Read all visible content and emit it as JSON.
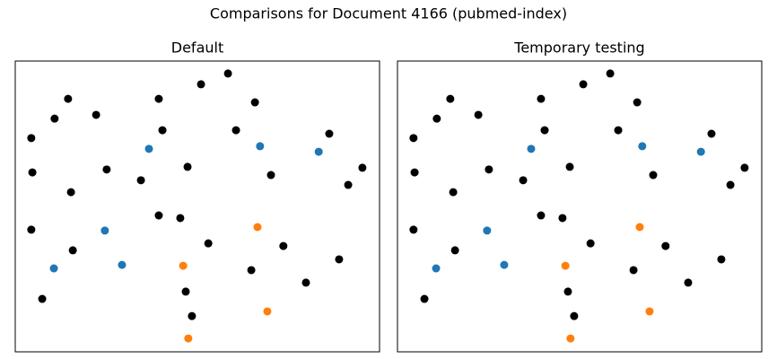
{
  "title": "Comparisons for Document 4166 (pubmed-index)",
  "chart_data": [
    {
      "type": "scatter",
      "title": "Default",
      "xlim": [
        0,
        100
      ],
      "ylim": [
        0,
        100
      ],
      "series": [
        {
          "color": "#000000",
          "x": [
            14.5,
            10.8,
            4.4,
            4.7,
            15.3,
            22.2,
            25.1,
            39.4,
            40.4,
            51.0,
            58.4,
            65.8,
            60.6,
            47.3,
            34.5,
            70.2,
            86.2,
            95.3,
            91.4,
            39.4,
            45.3,
            53.0,
            73.6,
            88.9,
            79.8,
            64.8,
            46.8,
            48.5,
            7.4,
            15.8,
            4.4
          ],
          "y": [
            87.0,
            80.2,
            73.5,
            61.7,
            54.9,
            81.5,
            62.7,
            87.0,
            76.2,
            92.0,
            95.7,
            85.8,
            76.2,
            63.6,
            59.0,
            60.8,
            75.0,
            63.3,
            57.4,
            46.9,
            46.0,
            37.3,
            36.4,
            31.8,
            23.8,
            28.1,
            20.7,
            12.3,
            18.2,
            34.9,
            42.0
          ]
        },
        {
          "color": "#1f77b4",
          "x": [
            36.7,
            67.2,
            83.3,
            24.6,
            10.6,
            29.3
          ],
          "y": [
            69.8,
            70.7,
            68.8,
            41.7,
            28.7,
            29.9
          ]
        },
        {
          "color": "#ff7f0e",
          "x": [
            66.5,
            46.1,
            69.2,
            47.5
          ],
          "y": [
            42.9,
            29.6,
            13.9,
            4.6
          ]
        }
      ]
    },
    {
      "type": "scatter",
      "title": "Temporary testing",
      "xlim": [
        0,
        100
      ],
      "ylim": [
        0,
        100
      ],
      "series": [
        {
          "color": "#000000",
          "x": [
            14.5,
            10.8,
            4.4,
            4.7,
            15.3,
            22.2,
            25.1,
            39.4,
            40.4,
            51.0,
            58.4,
            65.8,
            60.6,
            47.3,
            34.5,
            70.2,
            86.2,
            95.3,
            91.4,
            39.4,
            45.3,
            53.0,
            73.6,
            88.9,
            79.8,
            64.8,
            46.8,
            48.5,
            7.4,
            15.8,
            4.4
          ],
          "y": [
            87.0,
            80.2,
            73.5,
            61.7,
            54.9,
            81.5,
            62.7,
            87.0,
            76.2,
            92.0,
            95.7,
            85.8,
            76.2,
            63.6,
            59.0,
            60.8,
            75.0,
            63.3,
            57.4,
            46.9,
            46.0,
            37.3,
            36.4,
            31.8,
            23.8,
            28.1,
            20.7,
            12.3,
            18.2,
            34.9,
            42.0
          ]
        },
        {
          "color": "#1f77b4",
          "x": [
            36.7,
            67.2,
            83.3,
            24.6,
            10.6,
            29.3
          ],
          "y": [
            69.8,
            70.7,
            68.8,
            41.7,
            28.7,
            29.9
          ]
        },
        {
          "color": "#ff7f0e",
          "x": [
            66.5,
            46.1,
            69.2,
            47.5
          ],
          "y": [
            42.9,
            29.6,
            13.9,
            4.6
          ]
        }
      ]
    }
  ]
}
